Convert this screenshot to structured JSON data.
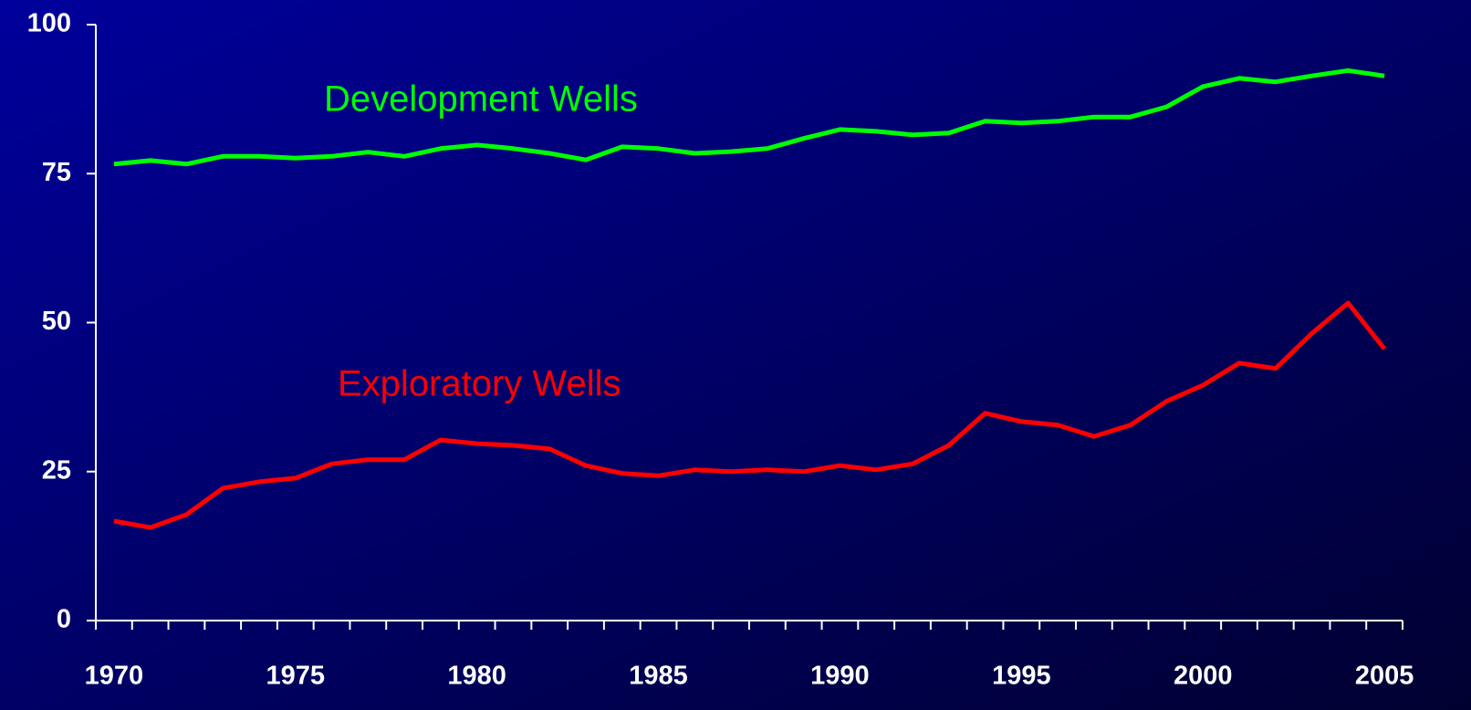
{
  "chart_data": {
    "type": "line",
    "categories": [
      "1970",
      null,
      null,
      null,
      null,
      "1975",
      null,
      null,
      null,
      null,
      "1980",
      null,
      null,
      null,
      null,
      "1985",
      null,
      null,
      null,
      null,
      "1990",
      null,
      null,
      null,
      null,
      "1995",
      null,
      null,
      null,
      null,
      "2000",
      null,
      null,
      null,
      null,
      "2005"
    ],
    "series": [
      {
        "name": "Development Wells",
        "color": "#00ff00",
        "values": [
          76.6,
          77.2,
          76.6,
          77.9,
          77.9,
          77.6,
          77.9,
          78.6,
          77.9,
          79.2,
          79.8,
          79.2,
          78.4,
          77.3,
          79.5,
          79.2,
          78.4,
          78.7,
          79.2,
          80.9,
          82.4,
          82.1,
          81.5,
          81.8,
          83.8,
          83.5,
          83.8,
          84.5,
          84.5,
          86.2,
          89.6,
          91.0,
          90.4,
          91.4,
          92.3,
          91.4
        ]
      },
      {
        "name": "Exploratory Wells",
        "color": "#ff0000",
        "values": [
          16.7,
          15.6,
          17.8,
          22.2,
          23.3,
          23.9,
          26.3,
          27.0,
          27.0,
          30.3,
          29.7,
          29.4,
          28.8,
          26.0,
          24.7,
          24.3,
          25.3,
          25.0,
          25.3,
          25.0,
          26.0,
          25.3,
          26.3,
          29.4,
          34.8,
          33.4,
          32.8,
          30.9,
          32.8,
          36.8,
          39.5,
          43.2,
          42.3,
          48.2,
          53.3,
          45.6
        ]
      }
    ],
    "ylim": [
      0,
      100
    ],
    "yticks": [
      0,
      25,
      50,
      75,
      100
    ],
    "grid": false
  }
}
